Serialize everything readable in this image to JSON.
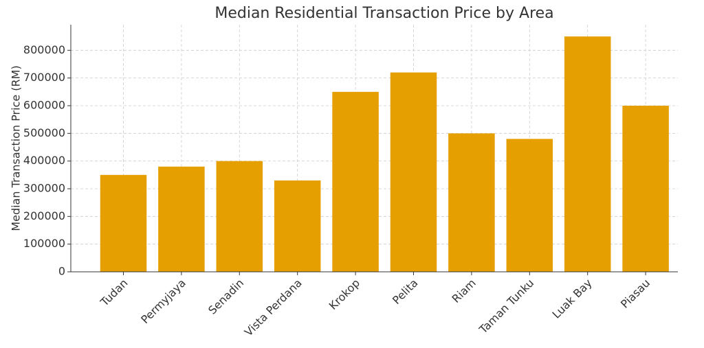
{
  "chart_data": {
    "type": "bar",
    "title": "Median Residential Transaction Price by Area",
    "y_label": "Median Transaction Price (RM)",
    "categories": [
      "Tudan",
      "Permyjaya",
      "Senadin",
      "Vista Perdana",
      "Krokop",
      "Pelita",
      "Riam",
      "Taman Tunku",
      "Luak Bay",
      "Piasau"
    ],
    "values": [
      350000,
      380000,
      400000,
      330000,
      650000,
      720000,
      500000,
      480000,
      850000,
      600000
    ],
    "color": "#e69f00",
    "ylim": [
      0,
      892500
    ],
    "yticks": [
      0,
      100000,
      200000,
      300000,
      400000,
      500000,
      600000,
      700000,
      800000
    ],
    "grid": true
  }
}
